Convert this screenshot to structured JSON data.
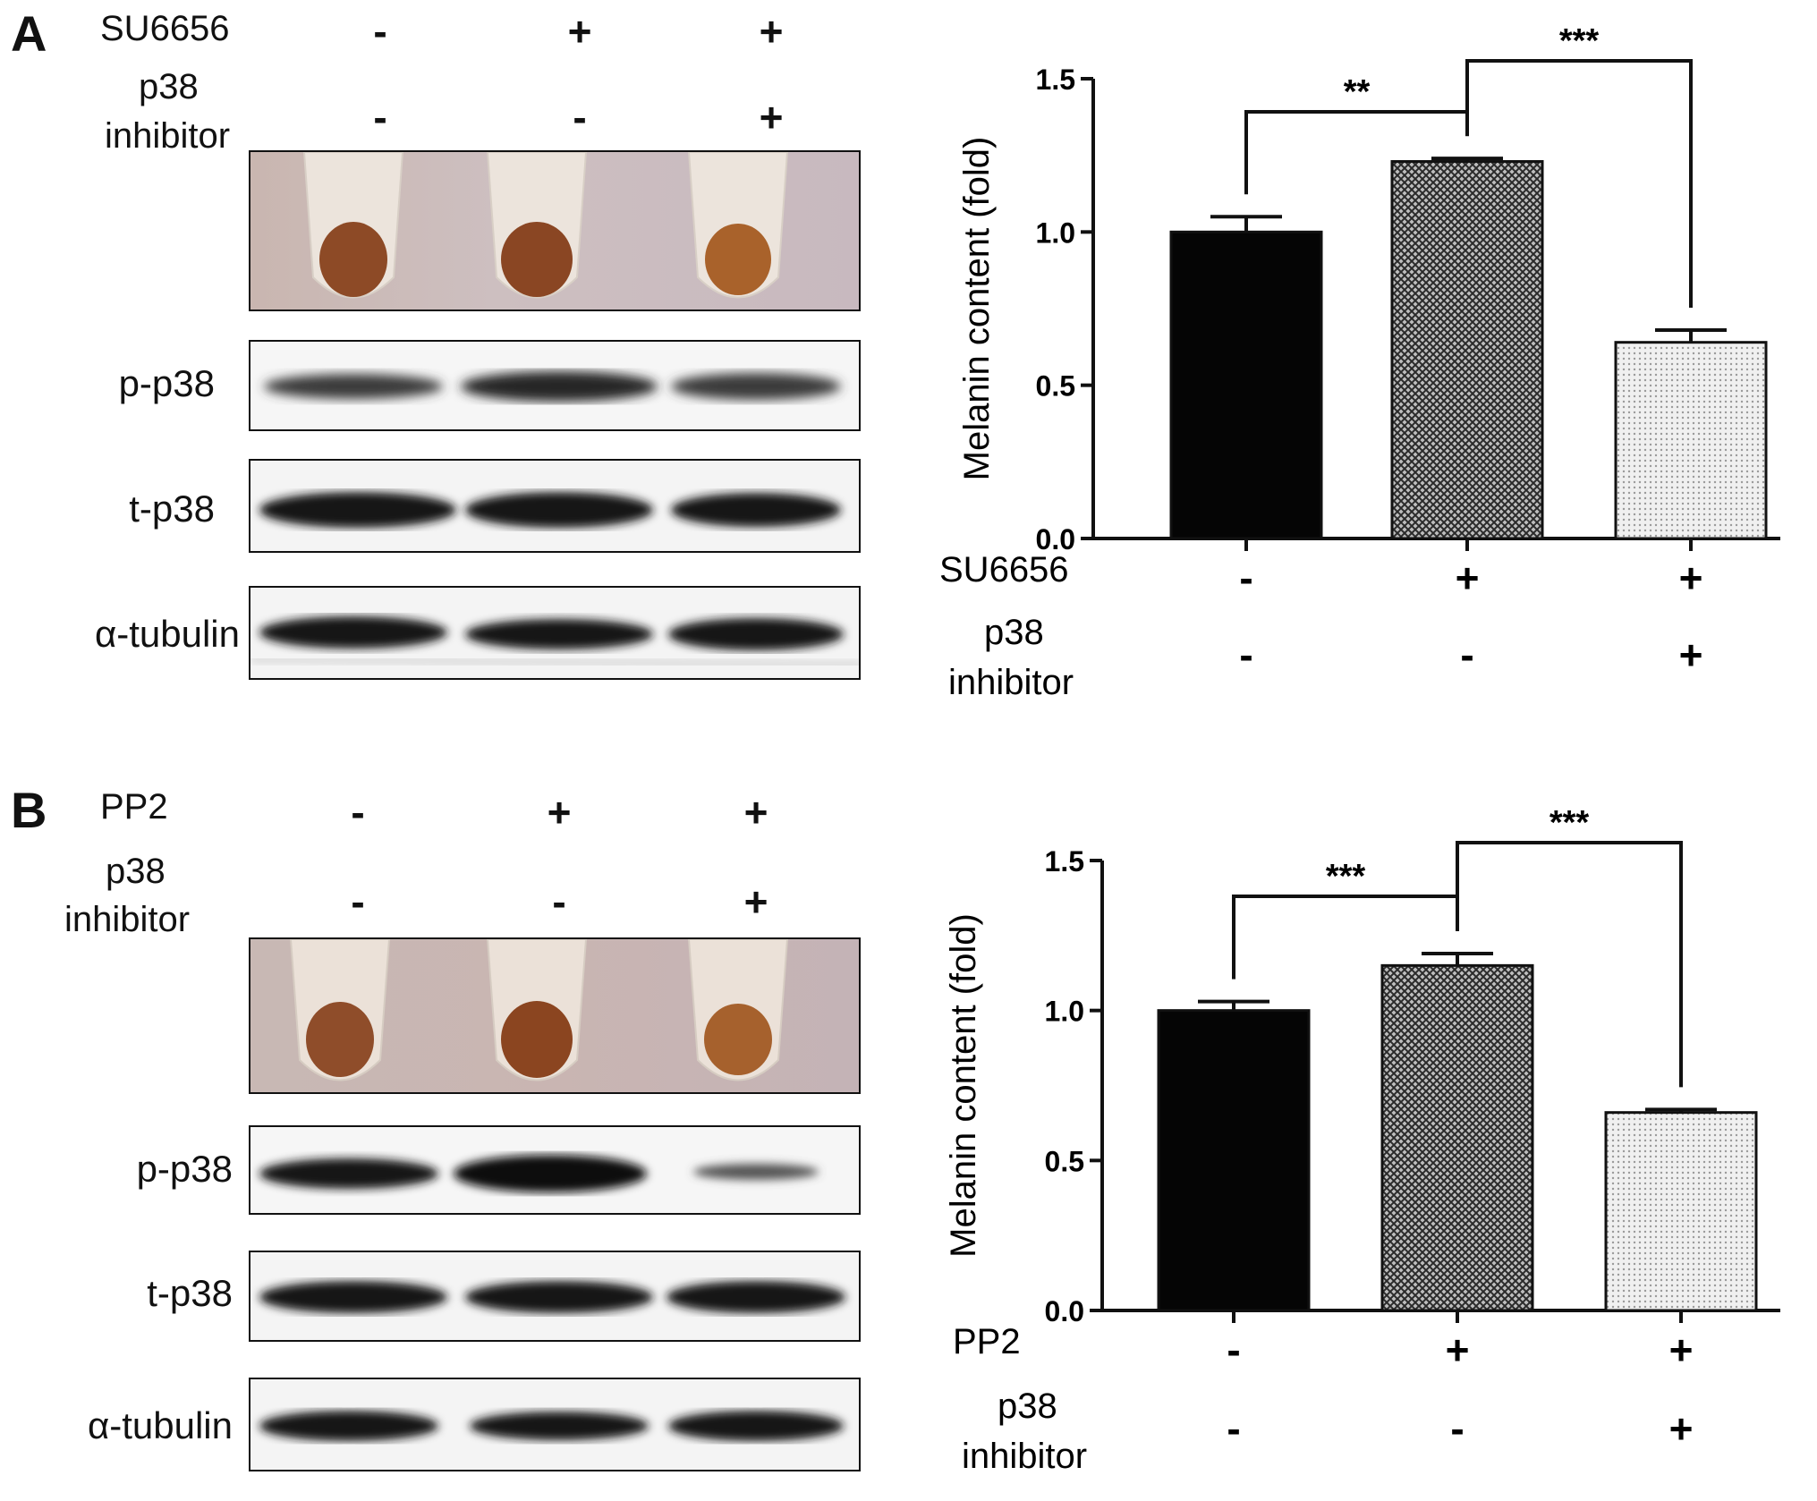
{
  "panels": [
    {
      "letter": "A",
      "treatment_label": "SU6656",
      "inhibitor_label_line1": "p38",
      "inhibitor_label_line2": "inhibitor",
      "treatment_signs": [
        "-",
        "+",
        "+"
      ],
      "inhibitor_signs": [
        "-",
        "-",
        "+"
      ],
      "blot_labels": [
        "p-p38",
        "t-p38",
        "α-tubulin"
      ]
    },
    {
      "letter": "B",
      "treatment_label": "PP2",
      "inhibitor_label_line1": "p38",
      "inhibitor_label_line2": "inhibitor",
      "treatment_signs": [
        "-",
        "+",
        "+"
      ],
      "inhibitor_signs": [
        "-",
        "-",
        "+"
      ],
      "blot_labels": [
        "p-p38",
        "t-p38",
        "α-tubulin"
      ]
    }
  ],
  "chart_data": [
    {
      "type": "bar",
      "categories": [
        "SU6656 - / p38 inhibitor -",
        "SU6656 + / p38 inhibitor -",
        "SU6656 + / p38 inhibitor +"
      ],
      "values": [
        1.0,
        1.23,
        0.64
      ],
      "errors": [
        0.05,
        0.01,
        0.04
      ],
      "ylabel": "Melanin content (fold)",
      "ylim": [
        0,
        1.5
      ],
      "yticks": [
        "0.0",
        "0.5",
        "1.0",
        "1.5"
      ],
      "x_row1_label": "SU6656",
      "x_row2_label_line1": "p38",
      "x_row2_label_line2": "inhibitor",
      "x_row1_signs": [
        "-",
        "+",
        "+"
      ],
      "x_row2_signs": [
        "-",
        "-",
        "+"
      ],
      "significance": [
        {
          "from": 0,
          "to": 1,
          "label": "**"
        },
        {
          "from": 1,
          "to": 2,
          "label": "***"
        }
      ],
      "bar_fills": [
        "solid-black",
        "dark-crosshatch",
        "light-dots"
      ]
    },
    {
      "type": "bar",
      "categories": [
        "PP2 - / p38 inhibitor -",
        "PP2 + / p38 inhibitor -",
        "PP2 + / p38 inhibitor +"
      ],
      "values": [
        1.0,
        1.15,
        0.66
      ],
      "errors": [
        0.03,
        0.04,
        0.01
      ],
      "ylabel": "Melanin content (fold)",
      "ylim": [
        0,
        1.5
      ],
      "yticks": [
        "0.0",
        "0.5",
        "1.0",
        "1.5"
      ],
      "x_row1_label": "PP2",
      "x_row2_label_line1": "p38",
      "x_row2_label_line2": "inhibitor",
      "x_row1_signs": [
        "-",
        "+",
        "+"
      ],
      "x_row2_signs": [
        "-",
        "-",
        "+"
      ],
      "significance": [
        {
          "from": 0,
          "to": 1,
          "label": "***"
        },
        {
          "from": 1,
          "to": 2,
          "label": "***"
        }
      ],
      "bar_fills": [
        "solid-black",
        "dark-crosshatch",
        "light-dots"
      ]
    }
  ]
}
